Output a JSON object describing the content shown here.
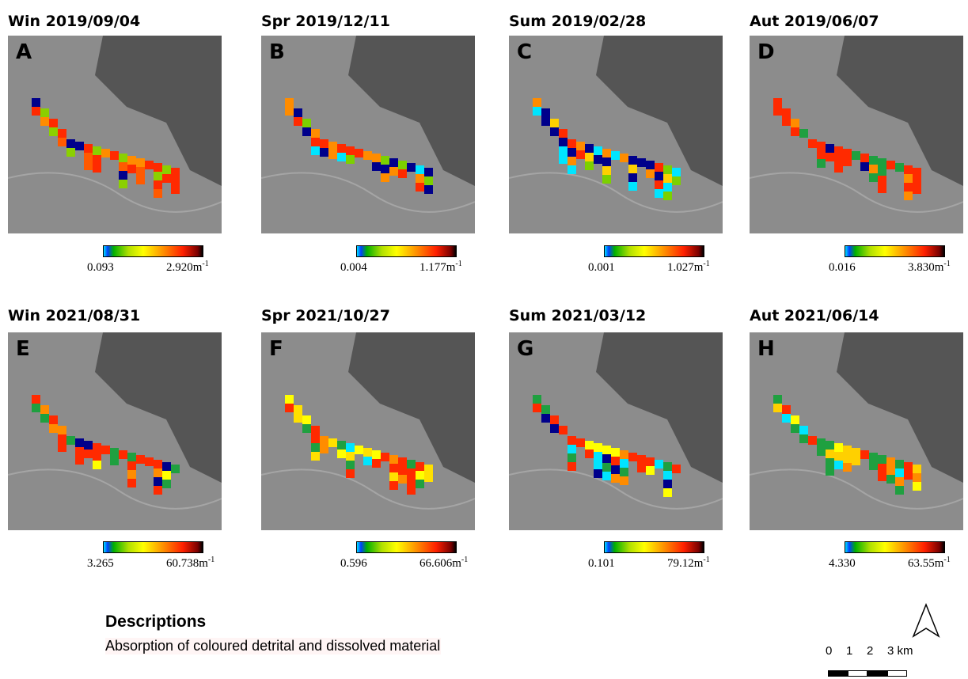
{
  "panels": [
    {
      "title": "Win 2019/09/04",
      "letter": "A",
      "min": "0.093",
      "max": "2.920"
    },
    {
      "title": "Spr 2019/12/11",
      "letter": "B",
      "min": "0.004",
      "max": "1.177"
    },
    {
      "title": "Sum 2019/02/28",
      "letter": "C",
      "min": "0.001",
      "max": "1.027"
    },
    {
      "title": "Aut 2019/06/07",
      "letter": "D",
      "min": "0.016",
      "max": "3.830"
    },
    {
      "title": "Win 2021/08/31",
      "letter": "E",
      "min": "3.265",
      "max": "60.738"
    },
    {
      "title": "Spr 2021/10/27",
      "letter": "F",
      "min": "0.596",
      "max": "66.606"
    },
    {
      "title": "Sum 2021/03/12",
      "letter": "G",
      "min": "0.101",
      "max": "79.12"
    },
    {
      "title": "Aut 2021/06/14",
      "letter": "H",
      "min": "4.330",
      "max": "63.55"
    }
  ],
  "unit": {
    "base": "m",
    "exponent": "-1"
  },
  "descriptions": {
    "heading": "Descriptions",
    "text": "Absorption of coloured detrital and dissolved material"
  },
  "scale_bar": {
    "labels": [
      "0",
      "1",
      "2",
      "3 km"
    ]
  }
}
